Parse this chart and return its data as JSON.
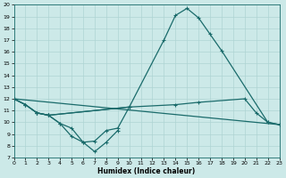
{
  "xlabel": "Humidex (Indice chaleur)",
  "xlim": [
    0,
    23
  ],
  "ylim": [
    7,
    20
  ],
  "xticks": [
    0,
    1,
    2,
    3,
    4,
    5,
    6,
    7,
    8,
    9,
    10,
    11,
    12,
    13,
    14,
    15,
    16,
    17,
    18,
    19,
    20,
    21,
    22,
    23
  ],
  "yticks": [
    7,
    8,
    9,
    10,
    11,
    12,
    13,
    14,
    15,
    16,
    17,
    18,
    19,
    20
  ],
  "background_color": "#cce9e8",
  "grid_color": "#aed4d3",
  "line_color": "#1a6b6b",
  "linewidth": 0.9,
  "markersize": 3.0,
  "curves": [
    {
      "x": [
        0,
        1,
        2,
        3,
        10,
        13,
        14,
        15,
        16,
        17,
        18,
        22,
        23
      ],
      "y": [
        12.0,
        11.5,
        10.8,
        10.6,
        11.3,
        17.0,
        19.1,
        19.7,
        18.9,
        17.5,
        16.1,
        10.0,
        9.8
      ],
      "marker": true
    },
    {
      "x": [
        0,
        23
      ],
      "y": [
        12.0,
        9.8
      ],
      "marker": false
    },
    {
      "x": [
        0,
        1,
        2,
        3,
        10,
        14,
        16,
        20,
        21,
        22,
        23
      ],
      "y": [
        12.0,
        11.5,
        10.8,
        10.6,
        11.3,
        11.5,
        11.7,
        12.0,
        10.8,
        10.0,
        9.8
      ],
      "marker": true
    },
    {
      "x": [
        0,
        1,
        2,
        3,
        4,
        5,
        6,
        7,
        8,
        9,
        10
      ],
      "y": [
        12.0,
        11.5,
        10.8,
        10.6,
        9.9,
        9.5,
        8.3,
        8.4,
        9.3,
        9.5,
        11.3
      ],
      "marker": true
    },
    {
      "x": [
        2,
        3,
        4,
        5,
        6,
        7,
        8,
        9
      ],
      "y": [
        10.8,
        10.6,
        9.9,
        8.8,
        8.3,
        7.5,
        8.3,
        9.3
      ],
      "marker": true
    }
  ]
}
